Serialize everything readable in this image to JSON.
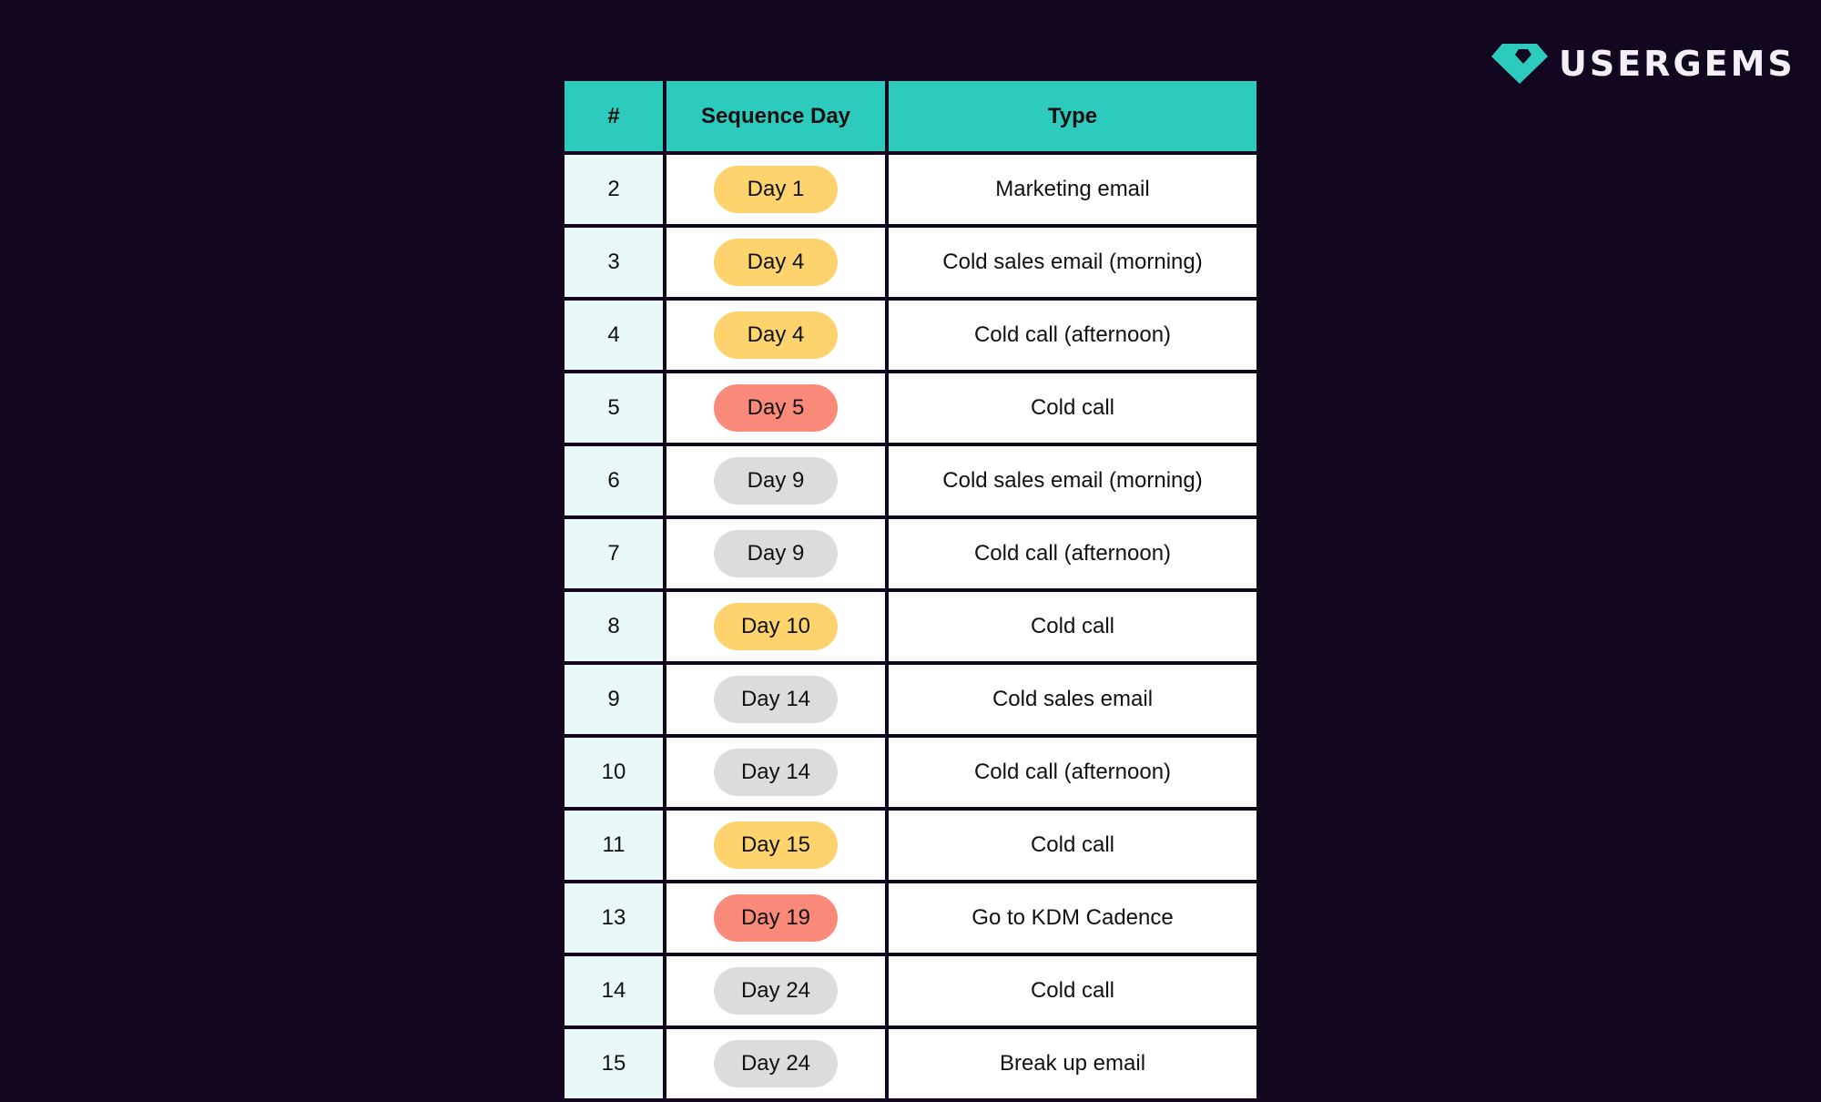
{
  "brand": {
    "name": "USERGEMS",
    "logo_icon": "gem-icon",
    "accent": "#2dcabe"
  },
  "colors": {
    "background": "#12071f",
    "header": "#2dcabe",
    "yellow": "#fdd36e",
    "red": "#f98a7a",
    "gray": "#dcdcde"
  },
  "table": {
    "headers": [
      "#",
      "Sequence Day",
      "Type"
    ],
    "rows": [
      {
        "num": "2",
        "day": "Day 1",
        "color": "yellow",
        "type": "Marketing email"
      },
      {
        "num": "3",
        "day": "Day 4",
        "color": "yellow",
        "type": "Cold sales email (morning)"
      },
      {
        "num": "4",
        "day": "Day 4",
        "color": "yellow",
        "type": "Cold call (afternoon)"
      },
      {
        "num": "5",
        "day": "Day 5",
        "color": "red",
        "type": "Cold call"
      },
      {
        "num": "6",
        "day": "Day 9",
        "color": "gray",
        "type": "Cold sales email (morning)"
      },
      {
        "num": "7",
        "day": "Day 9",
        "color": "gray",
        "type": "Cold call (afternoon)"
      },
      {
        "num": "8",
        "day": "Day 10",
        "color": "yellow",
        "type": "Cold call"
      },
      {
        "num": "9",
        "day": "Day 14",
        "color": "gray",
        "type": "Cold sales email"
      },
      {
        "num": "10",
        "day": "Day 14",
        "color": "gray",
        "type": "Cold call (afternoon)"
      },
      {
        "num": "11",
        "day": "Day 15",
        "color": "yellow",
        "type": "Cold call"
      },
      {
        "num": "13",
        "day": "Day 19",
        "color": "red",
        "type": "Go to KDM Cadence"
      },
      {
        "num": "14",
        "day": "Day 24",
        "color": "gray",
        "type": "Cold call"
      },
      {
        "num": "15",
        "day": "Day 24",
        "color": "gray",
        "type": "Break up email"
      }
    ]
  }
}
